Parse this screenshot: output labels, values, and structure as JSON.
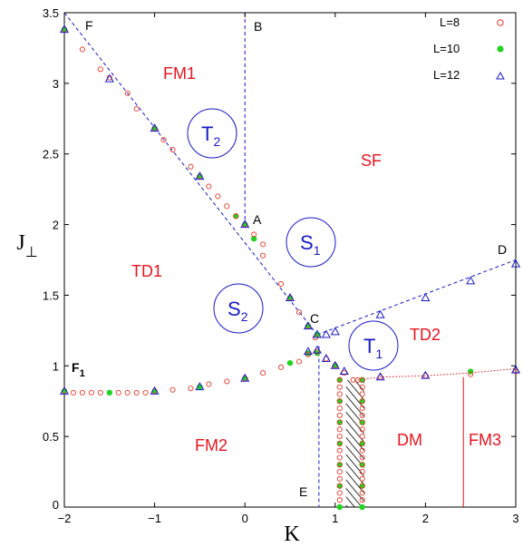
{
  "chart_data": {
    "type": "scatter",
    "xlabel": "K",
    "ylabel": "J",
    "ylabel_sub": "⊥",
    "xlim": [
      -2,
      3
    ],
    "ylim": [
      0,
      3.5
    ],
    "xticks": [
      -2,
      -1,
      0,
      1,
      2,
      3
    ],
    "yticks": [
      0,
      0.5,
      1,
      1.5,
      2,
      2.5,
      3,
      3.5
    ],
    "xtick_labels": [
      "−2",
      "−1",
      "0",
      "1",
      "2",
      "3"
    ],
    "ytick_labels": [
      "0",
      "0.5",
      "1",
      "1.5",
      "2",
      "2.5",
      "3",
      "3.5"
    ],
    "legend_position": "top-right",
    "colors": {
      "L8": "#e8392a",
      "L10": "#22d322",
      "L12": "#1a1ac8",
      "region_text": "#e8141e",
      "circle_text": "#1a1ac8",
      "dash_line": "#1a1ac8",
      "dot_line": "#e8141e"
    },
    "series": [
      {
        "name": "L=8",
        "marker": "open-circle",
        "points": [
          [
            -2.0,
            3.38
          ],
          [
            -1.8,
            3.24
          ],
          [
            -1.6,
            3.1
          ],
          [
            -1.5,
            3.04
          ],
          [
            -1.3,
            2.93
          ],
          [
            -1.2,
            2.82
          ],
          [
            -1.0,
            2.68
          ],
          [
            -0.9,
            2.6
          ],
          [
            -0.8,
            2.53
          ],
          [
            -0.6,
            2.41
          ],
          [
            -0.5,
            2.34
          ],
          [
            -0.4,
            2.27
          ],
          [
            -0.3,
            2.2
          ],
          [
            -0.2,
            2.13
          ],
          [
            -0.1,
            2.06
          ],
          [
            0.0,
            2.0
          ],
          [
            0.1,
            1.93
          ],
          [
            0.2,
            1.86
          ],
          [
            0.2,
            1.78
          ],
          [
            0.4,
            1.58
          ],
          [
            0.5,
            1.48
          ],
          [
            0.6,
            1.38
          ],
          [
            0.7,
            1.28
          ],
          [
            0.78,
            1.2
          ],
          [
            -2.0,
            0.82
          ],
          [
            -1.9,
            0.81
          ],
          [
            -1.8,
            0.81
          ],
          [
            -1.7,
            0.81
          ],
          [
            -1.6,
            0.81
          ],
          [
            -1.4,
            0.81
          ],
          [
            -1.3,
            0.81
          ],
          [
            -1.2,
            0.81
          ],
          [
            -1.1,
            0.81
          ],
          [
            -1.0,
            0.82
          ],
          [
            -0.8,
            0.83
          ],
          [
            -0.6,
            0.84
          ],
          [
            -0.4,
            0.87
          ],
          [
            -0.2,
            0.89
          ],
          [
            0.0,
            0.91
          ],
          [
            0.2,
            0.95
          ],
          [
            0.4,
            0.99
          ],
          [
            0.6,
            1.03
          ],
          [
            0.7,
            1.08
          ],
          [
            0.8,
            1.1
          ],
          [
            0.9,
            1.05
          ],
          [
            1.0,
            1.0
          ],
          [
            1.1,
            0.95
          ],
          [
            1.05,
            0.9
          ],
          [
            1.05,
            0.85
          ],
          [
            1.05,
            0.8
          ],
          [
            1.05,
            0.75
          ],
          [
            1.05,
            0.7
          ],
          [
            1.05,
            0.65
          ],
          [
            1.05,
            0.6
          ],
          [
            1.05,
            0.55
          ],
          [
            1.05,
            0.5
          ],
          [
            1.05,
            0.45
          ],
          [
            1.05,
            0.4
          ],
          [
            1.05,
            0.35
          ],
          [
            1.05,
            0.3
          ],
          [
            1.05,
            0.25
          ],
          [
            1.05,
            0.2
          ],
          [
            1.05,
            0.15
          ],
          [
            1.05,
            0.1
          ],
          [
            1.05,
            0.05
          ],
          [
            1.3,
            0.9
          ],
          [
            1.3,
            0.85
          ],
          [
            1.3,
            0.8
          ],
          [
            1.3,
            0.75
          ],
          [
            1.3,
            0.7
          ],
          [
            1.3,
            0.65
          ],
          [
            1.3,
            0.6
          ],
          [
            1.3,
            0.55
          ],
          [
            1.3,
            0.5
          ],
          [
            1.3,
            0.45
          ],
          [
            1.3,
            0.4
          ],
          [
            1.3,
            0.35
          ],
          [
            1.3,
            0.3
          ],
          [
            1.3,
            0.25
          ],
          [
            1.3,
            0.2
          ],
          [
            1.3,
            0.15
          ],
          [
            1.3,
            0.1
          ],
          [
            1.3,
            0.05
          ],
          [
            1.2,
            0.9
          ],
          [
            1.25,
            0.9
          ],
          [
            1.5,
            0.92
          ],
          [
            2.0,
            0.93
          ],
          [
            2.5,
            0.94
          ],
          [
            3.0,
            0.96
          ]
        ]
      },
      {
        "name": "L=10",
        "marker": "filled-circle",
        "points": [
          [
            -2.0,
            3.38
          ],
          [
            -1.0,
            2.68
          ],
          [
            -0.5,
            2.34
          ],
          [
            -0.1,
            2.06
          ],
          [
            0.0,
            2.0
          ],
          [
            0.1,
            1.9
          ],
          [
            0.5,
            1.48
          ],
          [
            0.7,
            1.28
          ],
          [
            0.8,
            1.22
          ],
          [
            -2.0,
            0.82
          ],
          [
            -1.5,
            0.81
          ],
          [
            -1.0,
            0.82
          ],
          [
            -0.5,
            0.85
          ],
          [
            0.0,
            0.91
          ],
          [
            0.5,
            1.02
          ],
          [
            0.7,
            1.09
          ],
          [
            0.8,
            1.09
          ],
          [
            1.0,
            1.0
          ],
          [
            1.05,
            0.9
          ],
          [
            1.05,
            0.75
          ],
          [
            1.05,
            0.6
          ],
          [
            1.05,
            0.45
          ],
          [
            1.05,
            0.3
          ],
          [
            1.05,
            0.15
          ],
          [
            1.05,
            0.0
          ],
          [
            1.3,
            0.9
          ],
          [
            1.3,
            0.75
          ],
          [
            1.3,
            0.6
          ],
          [
            1.3,
            0.45
          ],
          [
            1.3,
            0.3
          ],
          [
            1.3,
            0.15
          ],
          [
            1.3,
            0.0
          ],
          [
            2.5,
            0.96
          ]
        ]
      },
      {
        "name": "L=12",
        "marker": "open-triangle",
        "points": [
          [
            -2.0,
            3.38
          ],
          [
            -1.5,
            3.03
          ],
          [
            -1.0,
            2.68
          ],
          [
            -0.5,
            2.34
          ],
          [
            0.0,
            2.0
          ],
          [
            0.5,
            1.48
          ],
          [
            0.7,
            1.28
          ],
          [
            0.8,
            1.22
          ],
          [
            0.9,
            1.22
          ],
          [
            1.0,
            1.24
          ],
          [
            1.5,
            1.36
          ],
          [
            2.0,
            1.48
          ],
          [
            2.5,
            1.6
          ],
          [
            3.0,
            1.72
          ],
          [
            -2.0,
            0.82
          ],
          [
            -1.0,
            0.82
          ],
          [
            -0.5,
            0.85
          ],
          [
            0.0,
            0.91
          ],
          [
            0.7,
            1.1
          ],
          [
            0.8,
            1.11
          ],
          [
            0.9,
            1.05
          ],
          [
            1.0,
            1.0
          ],
          [
            1.1,
            0.96
          ],
          [
            1.5,
            0.92
          ],
          [
            2.0,
            0.93
          ],
          [
            3.0,
            0.97
          ]
        ]
      }
    ],
    "dashed_lines": [
      {
        "from": [
          -2.0,
          3.5
        ],
        "to": [
          0.8,
          1.22
        ]
      },
      {
        "from": [
          0.8,
          1.22
        ],
        "to": [
          3.0,
          1.75
        ]
      },
      {
        "from": [
          0.0,
          3.5
        ],
        "to": [
          0.0,
          2.0
        ]
      },
      {
        "from": [
          0.82,
          1.14
        ],
        "to": [
          0.82,
          0.0
        ]
      }
    ],
    "dotted_line": [
      [
        1.25,
        0.9
      ],
      [
        1.5,
        0.92
      ],
      [
        2.0,
        0.93
      ],
      [
        2.5,
        0.95
      ],
      [
        3.0,
        0.98
      ]
    ],
    "solid_vertical": {
      "x": 2.42,
      "y0": 0.0,
      "y1": 0.92
    },
    "hatched_band": {
      "x0": 1.12,
      "x1": 1.32,
      "y0": 0.0,
      "y1": 0.9
    },
    "regions": [
      "FM1",
      "SF",
      "TD1",
      "TD2",
      "FM2",
      "DM",
      "FM3"
    ],
    "point_labels": [
      "F",
      "B",
      "A",
      "C",
      "D",
      "E",
      "F1"
    ],
    "circled_labels": [
      "T2",
      "S1",
      "S2",
      "T1"
    ]
  }
}
